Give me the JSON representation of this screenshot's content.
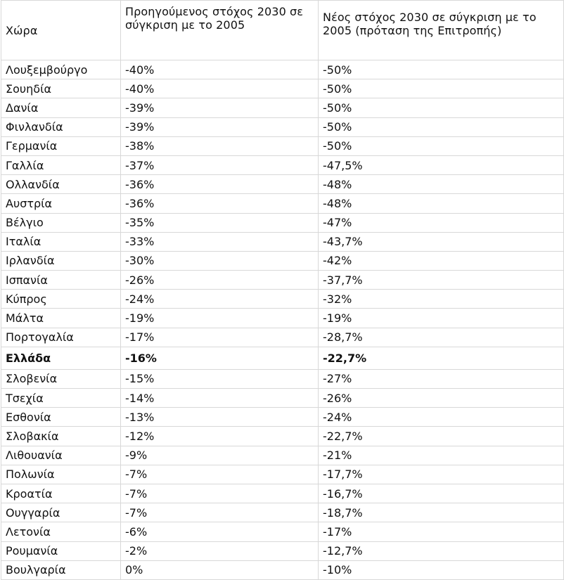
{
  "table": {
    "headers": [
      "Χώρα",
      "Προηγούμενος στόχος 2030 σε σύγκριση με το 2005",
      "Νέος στόχος 2030 σε σύγκριση με το 2005 (πρόταση της Επιτροπής)"
    ],
    "rows": [
      {
        "country": "Λουξεμβούργο",
        "previous": "-40%",
        "new": "-50%"
      },
      {
        "country": "Σουηδία",
        "previous": "-40%",
        "new": "-50%"
      },
      {
        "country": "Δανία",
        "previous": "-39%",
        "new": "-50%"
      },
      {
        "country": "Φινλανδία",
        "previous": "-39%",
        "new": "-50%"
      },
      {
        "country": "Γερμανία",
        "previous": "-38%",
        "new": "-50%"
      },
      {
        "country": "Γαλλία",
        "previous": "-37%",
        "new": "-47,5%"
      },
      {
        "country": "Ολλανδία",
        "previous": "-36%",
        "new": "-48%"
      },
      {
        "country": "Αυστρία",
        "previous": "-36%",
        "new": "-48%"
      },
      {
        "country": "Βέλγιο",
        "previous": "-35%",
        "new": "-47%"
      },
      {
        "country": "Ιταλία",
        "previous": "-33%",
        "new": "-43,7%"
      },
      {
        "country": "Ιρλανδία",
        "previous": "-30%",
        "new": "-42%"
      },
      {
        "country": "Ισπανία",
        "previous": "-26%",
        "new": "-37,7%"
      },
      {
        "country": "Κύπρος",
        "previous": "-24%",
        "new": "-32%"
      },
      {
        "country": "Μάλτα",
        "previous": "-19%",
        "new": "-19%"
      },
      {
        "country": "Πορτογαλία",
        "previous": "-17%",
        "new": "-28,7%"
      },
      {
        "country": "Ελλάδα",
        "previous": "-16%",
        "new": "-22,7%"
      },
      {
        "country": "Σλοβενία",
        "previous": "-15%",
        "new": "-27%"
      },
      {
        "country": "Τσεχία",
        "previous": "-14%",
        "new": "-26%"
      },
      {
        "country": "Εσθονία",
        "previous": "-13%",
        "new": "-24%"
      },
      {
        "country": "Σλοβακία",
        "previous": "-12%",
        "new": "-22,7%"
      },
      {
        "country": "Λιθουανία",
        "previous": "-9%",
        "new": "-21%"
      },
      {
        "country": "Πολωνία",
        "previous": "-7%",
        "new": "-17,7%"
      },
      {
        "country": "Κροατία",
        "previous": "-7%",
        "new": "-16,7%"
      },
      {
        "country": "Ουγγαρία",
        "previous": "-7%",
        "new": "-18,7%"
      },
      {
        "country": "Λετονία",
        "previous": "-6%",
        "new": "-17%"
      },
      {
        "country": "Ρουμανία",
        "previous": "-2%",
        "new": "-12,7%"
      },
      {
        "country": "Βουλγαρία",
        "previous": "0%",
        "new": "-10%"
      }
    ],
    "highlighted_country": "Ελλάδα"
  },
  "colors": {
    "border": "#d8d8d8",
    "text": "#111111",
    "background": "#ffffff"
  }
}
